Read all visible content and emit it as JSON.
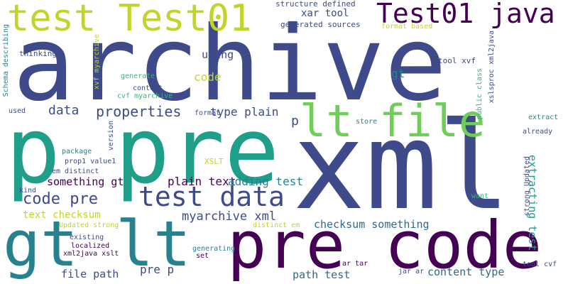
{
  "words": [
    "archive",
    "p pre",
    "xml",
    "pre code",
    "gt lt",
    "test Test01",
    "Test01 java",
    "lt file",
    "test data",
    "properties",
    "code pre",
    "data",
    "myarchive xml",
    "type plain",
    "plain text",
    "adding test",
    "checksum something",
    "something gt",
    "text checksum",
    "extracting test",
    "path test",
    "content type",
    "pre p",
    "file path",
    "code",
    "using",
    "xar tool",
    "gt",
    "p",
    "structure defined",
    "generated sources",
    "format based",
    "tool xvf",
    "public class",
    "xslsproc xml2java",
    "Schema describing",
    "thinking",
    "xvf myarchive",
    "generate",
    "content",
    "cvf myarchive",
    "format",
    "used",
    "version",
    "store",
    "already",
    "extract",
    "strong Updated",
    "want",
    "package",
    "XSLT",
    "prop1 value1",
    "em distinct",
    "kind",
    "Updated strong",
    "distinct em",
    "existing",
    "localized",
    "xml2java xslt",
    "generating",
    "set",
    "ar tar",
    "jar ar",
    "tool cvf"
  ],
  "palette": {
    "dark_purple": "#440154",
    "indigo": "#3e4a89",
    "blue": "#31688e",
    "teal": "#26828e",
    "green_teal": "#1f9e89",
    "green": "#35b779",
    "light_green": "#6ece58",
    "lime": "#b5de2b",
    "yellow": "#c2d42a"
  }
}
